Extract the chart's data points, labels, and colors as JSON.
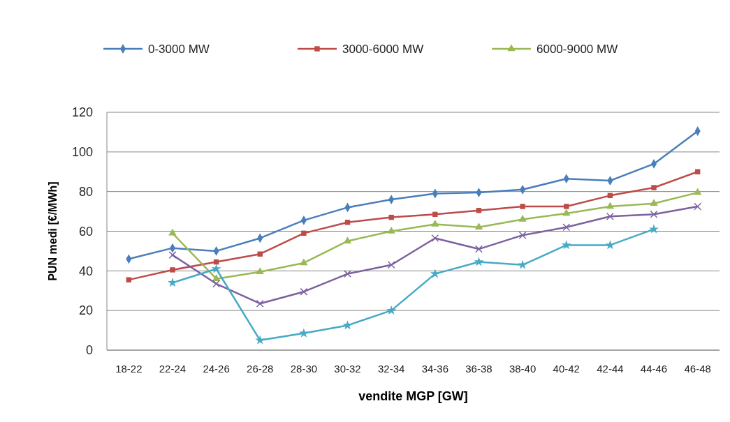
{
  "chart_data": {
    "type": "line",
    "xlabel": "vendite MGP [GW]",
    "ylabel": "PUN medi [€/MWh]",
    "categories": [
      "18-22",
      "22-24",
      "24-26",
      "26-28",
      "28-30",
      "30-32",
      "32-34",
      "34-36",
      "36-38",
      "38-40",
      "40-42",
      "42-44",
      "44-46",
      "46-48"
    ],
    "ylim": [
      0,
      120
    ],
    "yticks": [
      0,
      20,
      40,
      60,
      80,
      100,
      120
    ],
    "grid": "y",
    "legend": "top",
    "series": [
      {
        "name": "0-3000 MW",
        "color": "#4a7ebb",
        "marker": "diamond",
        "values": [
          46,
          51.5,
          50,
          56.5,
          65.5,
          72,
          76,
          79,
          79.5,
          81,
          86.5,
          85.5,
          94,
          110.5
        ]
      },
      {
        "name": "3000-6000 MW",
        "color": "#be4b48",
        "marker": "square",
        "values": [
          35.5,
          40.5,
          44.5,
          48.5,
          59,
          64.5,
          67,
          68.5,
          70.5,
          72.5,
          72.5,
          78,
          82,
          90
        ]
      },
      {
        "name": "6000-9000 MW",
        "color": "#98b954",
        "marker": "triangle",
        "values": [
          null,
          59,
          36,
          39.5,
          44,
          55,
          60,
          63.5,
          62,
          66,
          69,
          72.5,
          74,
          79.5
        ]
      },
      {
        "color": "#7d60a0",
        "marker": "cross",
        "values": [
          null,
          48,
          33.5,
          23.5,
          29.5,
          38.5,
          43,
          56.5,
          51,
          58,
          62,
          67.5,
          68.5,
          72.5
        ]
      },
      {
        "color": "#46aac5",
        "marker": "star",
        "values": [
          null,
          34,
          41,
          5,
          8.5,
          12.5,
          20,
          38.5,
          44.5,
          43,
          53,
          53,
          61,
          null
        ]
      }
    ]
  }
}
